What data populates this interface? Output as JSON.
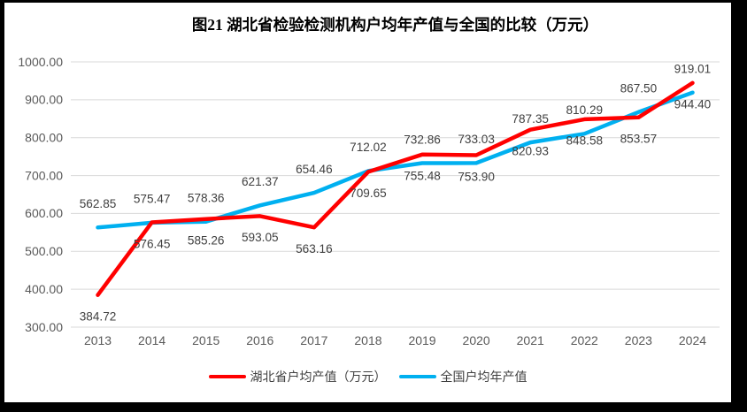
{
  "chart_data": {
    "type": "line",
    "title": "图21  湖北省检验检测机构户均年产值与全国的比较（万元）",
    "categories": [
      "2013",
      "2014",
      "2015",
      "2016",
      "2017",
      "2018",
      "2019",
      "2020",
      "2021",
      "2022",
      "2023",
      "2024"
    ],
    "series": [
      {
        "name": "湖北省户均产值（万元）",
        "color": "#FF0000",
        "label_placement": "below",
        "values": [
          384.72,
          576.45,
          585.26,
          593.05,
          563.16,
          709.65,
          755.48,
          753.9,
          820.93,
          848.58,
          853.57,
          944.4
        ]
      },
      {
        "name": "全国户均年产值",
        "color": "#00B0F0",
        "label_placement": "above",
        "values": [
          562.85,
          575.47,
          578.36,
          621.37,
          654.46,
          712.02,
          732.86,
          733.03,
          787.35,
          810.29,
          867.5,
          919.01
        ]
      }
    ],
    "ylim": [
      300,
      1000
    ],
    "ytick_step": 100,
    "ytick_labels": [
      "300.00",
      "400.00",
      "500.00",
      "600.00",
      "700.00",
      "800.00",
      "900.00",
      "1000.00"
    ],
    "label_decimals": 2,
    "grid": true,
    "legend_position": "bottom"
  },
  "style": {
    "background": "#FFFFFF",
    "frame_color": "#000000",
    "gridline_color": "#D9D9D9",
    "axis_text_color": "#595959",
    "data_label_color": "#404040",
    "line_width": 4.5
  }
}
